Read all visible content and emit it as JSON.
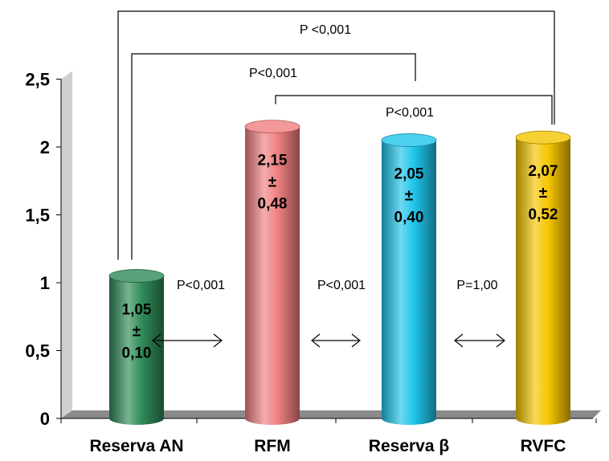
{
  "chart_data": {
    "type": "bar",
    "categories": [
      "Reserva AN",
      "RFM",
      "Reserva β",
      "RVFC"
    ],
    "values": [
      1.05,
      2.15,
      2.05,
      2.07
    ],
    "value_labels": [
      [
        "1,05",
        "±",
        "0,10"
      ],
      [
        "2,15",
        "±",
        "0,48"
      ],
      [
        "2,05",
        "±",
        "0,40"
      ],
      [
        "2,07",
        "±",
        "0,52"
      ]
    ],
    "bar_colors": [
      "#2e8b57",
      "#f08080",
      "#1ec4ea",
      "#f5c400"
    ],
    "ylim": [
      0,
      2.5
    ],
    "yticks": [
      0,
      0.5,
      1,
      1.5,
      2,
      2.5
    ],
    "ytick_labels": [
      "0",
      "0,5",
      "1",
      "1,5",
      "2",
      "2,5"
    ],
    "brackets": [
      {
        "from": 0,
        "to": 3,
        "label": "P <0,001"
      },
      {
        "from": 0,
        "to": 2,
        "label": "P<0,001"
      },
      {
        "from": 1,
        "to": 3,
        "label": "P<0,001"
      }
    ],
    "pair_comparisons": [
      {
        "between": [
          0,
          1
        ],
        "label": "P<0,001"
      },
      {
        "between": [
          1,
          2
        ],
        "label": "P<0,001"
      },
      {
        "between": [
          2,
          3
        ],
        "label": "P=1,00"
      }
    ]
  }
}
